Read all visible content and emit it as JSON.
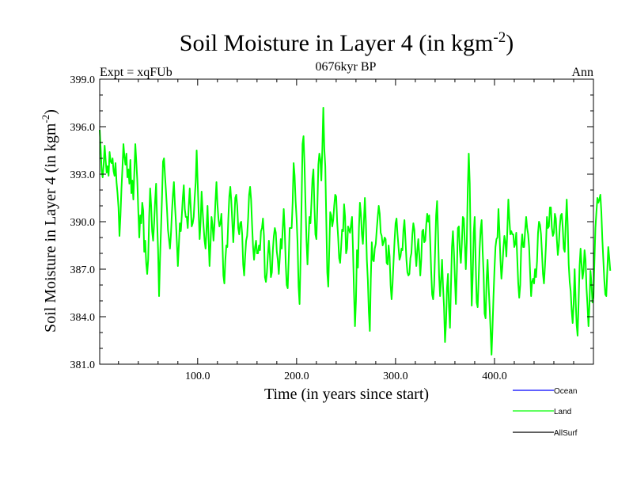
{
  "chart_data": {
    "type": "line",
    "title_main": "Soil Moisture in Layer 4 (in kgm",
    "title_sup": "-2",
    "title_close": ")",
    "subtitle_left": "Expt = xqFUb",
    "subtitle_center": "0676kyr BP",
    "subtitle_right": "Ann",
    "xlabel": "Time (in years since start)",
    "ylabel_main": "Soil Moisture in Layer 4 (in kgm",
    "ylabel_sup": "-2",
    "ylabel_close": ")",
    "xlim": [
      1,
      500
    ],
    "ylim": [
      381.0,
      399.0
    ],
    "x_ticks": [
      100,
      200,
      300,
      400
    ],
    "x_tick_labels": [
      "100.0",
      "200.0",
      "300.0",
      "400.0"
    ],
    "y_ticks": [
      381,
      384,
      387,
      390,
      393,
      396,
      399
    ],
    "y_tick_labels": [
      "381.0",
      "384.0",
      "387.0",
      "390.0",
      "393.0",
      "396.0",
      "399.0"
    ],
    "legend": [
      {
        "name": "Ocean",
        "color": "#0000ff"
      },
      {
        "name": "Land",
        "color": "#00ff00"
      },
      {
        "name": "AllSurf",
        "color": "#000000"
      }
    ],
    "series": [
      {
        "name": "Land",
        "color": "#00ff00",
        "x_start": 1,
        "x_step": 1,
        "values": [
          395.8,
          394.6,
          393.2,
          392.8,
          393.6,
          394.8,
          393.9,
          393.1,
          393.5,
          392.9,
          394.4,
          393.8,
          393.7,
          394.0,
          393.2,
          392.9,
          393.7,
          392.5,
          391.8,
          390.9,
          389.1,
          390.4,
          392.1,
          393.4,
          394.9,
          394.1,
          393.6,
          394.3,
          392.8,
          393.3,
          392.4,
          393.9,
          391.8,
          392.6,
          391.4,
          393.1,
          394.9,
          393.8,
          392.6,
          390.7,
          389.0,
          390.4,
          389.9,
          391.2,
          390.7,
          388.1,
          388.8,
          387.4,
          386.7,
          387.6,
          390.3,
          392.1,
          391.0,
          389.4,
          388.8,
          389.9,
          391.3,
          392.4,
          390.1,
          388.2,
          385.3,
          387.7,
          389.6,
          391.6,
          393.8,
          394.0,
          392.9,
          391.9,
          390.8,
          389.5,
          388.9,
          388.3,
          389.2,
          390.6,
          391.7,
          392.5,
          391.1,
          390.0,
          388.7,
          387.2,
          388.5,
          389.9,
          389.4,
          390.4,
          391.5,
          392.3,
          390.8,
          390.3,
          390.3,
          389.6,
          391.0,
          392.1,
          390.9,
          389.7,
          389.9,
          390.3,
          391.5,
          392.5,
          394.5,
          392.5,
          390.6,
          388.9,
          390.0,
          391.9,
          390.7,
          389.7,
          388.8,
          388.3,
          389.6,
          391.0,
          389.0,
          387.2,
          388.6,
          390.3,
          389.8,
          388.8,
          389.8,
          391.3,
          392.5,
          391.1,
          390.2,
          389.7,
          389.9,
          390.5,
          388.8,
          386.6,
          386.1,
          387.6,
          388.5,
          388.4,
          390.2,
          391.6,
          392.2,
          391.3,
          390.0,
          388.7,
          390.0,
          391.5,
          391.7,
          391.0,
          389.6,
          389.2,
          389.9,
          390.0,
          389.2,
          387.3,
          386.6,
          387.8,
          388.8,
          389.1,
          390.2,
          391.7,
          392.2,
          391.4,
          389.8,
          388.4,
          387.6,
          388.4,
          388.8,
          388.0,
          388.0,
          388.5,
          388.2,
          389.4,
          389.6,
          390.2,
          389.1,
          386.5,
          386.2,
          386.8,
          387.9,
          388.8,
          387.9,
          386.5,
          386.8,
          388.2,
          389.1,
          389.6,
          389.3,
          388.1,
          387.6,
          386.7,
          387.7,
          388.9,
          388.3,
          389.6,
          390.8,
          389.5,
          387.4,
          386.0,
          385.8,
          387.6,
          389.6,
          389.6,
          389.6,
          391.2,
          393.7,
          392.9,
          391.3,
          390.2,
          388.6,
          385.9,
          384.8,
          387.6,
          391.1,
          394.9,
          395.4,
          393.6,
          391.1,
          388.8,
          387.3,
          388.9,
          390.3,
          389.9,
          391.2,
          392.7,
          393.3,
          391.0,
          389.2,
          388.9,
          391.0,
          393.6,
          394.3,
          393.9,
          392.6,
          394.6,
          397.2,
          394.6,
          393.5,
          390.1,
          386.8,
          385.9,
          388.2,
          390.6,
          390.4,
          389.7,
          390.1,
          391.0,
          391.7,
          391.6,
          390.0,
          389.0,
          387.7,
          387.4,
          388.4,
          389.5,
          389.4,
          391.1,
          390.3,
          388.0,
          388.3,
          389.7,
          389.5,
          389.3,
          389.8,
          390.3,
          388.2,
          385.6,
          383.4,
          385.0,
          388.2,
          387.1,
          389.6,
          391.2,
          390.5,
          389.2,
          388.6,
          390.0,
          391.5,
          390.0,
          387.6,
          386.3,
          384.3,
          383.1,
          386.4,
          388.7,
          387.6,
          387.5,
          388.3,
          388.6,
          389.5,
          390.3,
          391.0,
          390.5,
          389.3,
          389.1,
          388.5,
          388.7,
          389.0,
          388.9,
          387.4,
          387.3,
          388.5,
          387.8,
          386.0,
          385.1,
          386.1,
          387.5,
          388.8,
          389.9,
          390.2,
          389.2,
          388.4,
          387.6,
          387.8,
          388.3,
          388.2,
          389.5,
          390.1,
          388.9,
          387.6,
          386.8,
          386.6,
          386.7,
          387.7,
          388.0,
          389.2,
          389.9,
          389.5,
          388.1,
          387.2,
          388.2,
          388.9,
          387.9,
          386.6,
          387.6,
          389.4,
          389.5,
          388.7,
          388.8,
          389.8,
          390.5,
          390.0,
          390.4,
          388.8,
          386.9,
          385.4,
          385.1,
          386.0,
          388.2,
          390.4,
          391.3,
          389.2,
          386.6,
          385.3,
          386.3,
          387.6,
          385.9,
          384.6,
          382.4,
          383.6,
          385.8,
          386.7,
          384.6,
          383.3,
          385.9,
          388.4,
          389.4,
          388.1,
          386.4,
          384.8,
          386.9,
          389.6,
          389.7,
          388.2,
          387.4,
          388.6,
          390.3,
          390.2,
          388.7,
          387.0,
          388.7,
          392.1,
          394.3,
          392.4,
          388.1,
          384.7,
          386.6,
          389.3,
          390.3,
          387.4,
          384.9,
          384.6,
          386.4,
          388.3,
          389.5,
          390.1,
          388.2,
          386.7,
          384.2,
          383.9,
          386.3,
          387.6,
          386.0,
          384.7,
          383.2,
          381.6,
          383.3,
          385.3,
          387.0,
          388.4,
          388.9,
          389.0,
          390.8,
          389.4,
          387.6,
          386.4,
          387.2,
          388.3,
          389.1,
          388.7,
          387.8,
          389.5,
          391.4,
          390.2,
          389.2,
          389.4,
          389.2,
          389.2,
          388.4,
          388.6,
          389.3,
          387.7,
          386.1,
          385.2,
          386.0,
          388.4,
          389.2,
          388.4,
          388.4,
          389.5,
          390.3,
          389.6,
          389.2,
          388.4,
          386.8,
          385.3,
          386.2,
          386.4,
          386.1,
          387.0,
          386.5,
          387.5,
          389.3,
          390.0,
          389.8,
          389.2,
          388.0,
          386.7,
          386.1,
          387.2,
          388.5,
          390.3,
          389.6,
          389.7,
          390.9,
          390.9,
          389.6,
          389.1,
          389.3,
          390.5,
          390.2,
          388.9,
          387.9,
          388.5,
          389.7,
          390.4,
          390.5,
          389.6,
          388.3,
          388.1,
          389.9,
          391.4,
          389.8,
          387.3,
          386.2,
          385.6,
          384.4,
          383.6,
          384.8,
          387.0,
          385.1,
          383.5,
          382.8,
          384.9,
          387.2,
          388.3,
          387.3,
          386.4,
          386.9,
          388.2,
          387.6,
          385.8,
          384.7,
          383.4,
          384.8,
          386.9,
          386.1,
          384.9,
          385.2,
          387.5,
          389.6,
          390.6,
          391.5,
          391.2,
          391.4,
          391.7,
          390.6,
          388.9,
          387.6,
          386.3,
          385.4,
          385.3,
          386.9,
          388.4,
          387.7,
          386.9
        ]
      }
    ]
  }
}
